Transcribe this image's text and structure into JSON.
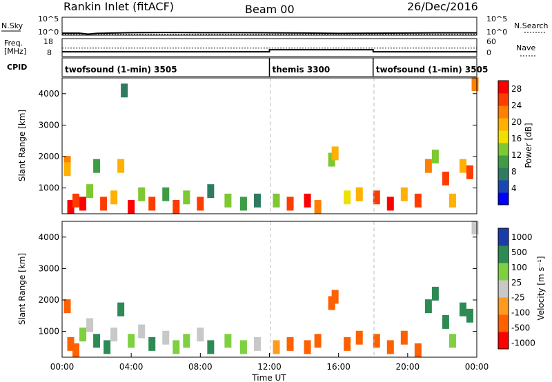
{
  "header": {
    "station": "Rankin Inlet (fitACF)",
    "beam": "Beam 00",
    "date": "26/Dec/2016"
  },
  "colors": {
    "power_scale": [
      "#0000ff",
      "#1a46b4",
      "#2f7a63",
      "#3e9c47",
      "#7ec832",
      "#f0e000",
      "#ffb000",
      "#ff8000",
      "#ff3c00",
      "#ff0000"
    ],
    "velocity_scale": [
      "#ff0000",
      "#ff6000",
      "#ff9a20",
      "#c8c8c8",
      "#7ed040",
      "#2e8a55",
      "#1a3caa"
    ],
    "ground_scatter": "#bebebe",
    "noise_line": "#000000"
  },
  "chart_data": [
    {
      "type": "line",
      "name": "noise-panel",
      "left_label": "N.Sky",
      "left_ticks": [
        "10^5",
        "10^0"
      ],
      "right_label": "N.Search",
      "right_ticks": [
        "10^5",
        "10^0"
      ],
      "x": [
        0,
        1,
        1.5,
        2,
        3,
        4,
        6,
        8,
        10,
        12,
        14,
        16,
        18,
        20,
        22,
        24
      ],
      "noise_sky_log10": [
        0.4,
        0.4,
        0.1,
        0.35,
        0.45,
        0.55,
        0.6,
        0.55,
        0.55,
        0.5,
        0.45,
        0.35,
        0.4,
        0.45,
        0.5,
        0.5
      ],
      "noise_search_log10": [
        0.1,
        0.1,
        0.1,
        0.1,
        0.1,
        0.1,
        0.1,
        0.1,
        0.1,
        0.1,
        0.1,
        0.1,
        0.1,
        0.1,
        0.1,
        0.1
      ]
    },
    {
      "type": "line",
      "name": "frequency-panel",
      "left_label": [
        "Freq.",
        "[MHz]"
      ],
      "left_ticks": [
        "18",
        "8"
      ],
      "right_label": "Nave",
      "right_ticks": [
        "60",
        "0"
      ],
      "x": [
        0,
        12,
        12,
        18,
        18,
        24
      ],
      "freq_mhz": [
        10.2,
        10.2,
        11.6,
        11.6,
        10.2,
        10.2
      ],
      "nave": [
        28,
        28,
        28,
        28,
        28,
        28
      ]
    },
    {
      "type": "table",
      "name": "cpid-panel",
      "label": "CPID",
      "segments": [
        {
          "start": 0,
          "end": 12,
          "label": "twofsound (1-min) 3505"
        },
        {
          "start": 12,
          "end": 18,
          "label": "themis 3300"
        },
        {
          "start": 18,
          "end": 24,
          "label": "twofsound (1-min) 3505"
        }
      ]
    },
    {
      "type": "heatmap",
      "name": "power-panel",
      "xlabel": "",
      "ylabel": "Slant Range [km]",
      "xlim": [
        0,
        24
      ],
      "ylim": [
        180,
        4500
      ],
      "yticks": [
        1000,
        2000,
        3000,
        4000
      ],
      "colorbar_label": "Power [dB]",
      "colorbar_ticks": [
        4,
        8,
        12,
        16,
        20,
        24,
        28
      ],
      "colorbar_range": [
        0,
        30
      ],
      "cells": [
        {
          "t": 0.3,
          "r": 1800,
          "v": 22
        },
        {
          "t": 0.3,
          "r": 1600,
          "v": 18
        },
        {
          "t": 0.5,
          "r": 400,
          "v": 28
        },
        {
          "t": 0.8,
          "r": 600,
          "v": 24
        },
        {
          "t": 1.2,
          "r": 500,
          "v": 27
        },
        {
          "t": 1.6,
          "r": 900,
          "v": 14
        },
        {
          "t": 2.0,
          "r": 1700,
          "v": 9
        },
        {
          "t": 2.4,
          "r": 500,
          "v": 26
        },
        {
          "t": 3.0,
          "r": 700,
          "v": 18
        },
        {
          "t": 3.4,
          "r": 1700,
          "v": 20
        },
        {
          "t": 3.6,
          "r": 4100,
          "v": 6
        },
        {
          "t": 4.0,
          "r": 400,
          "v": 28
        },
        {
          "t": 4.6,
          "r": 800,
          "v": 12
        },
        {
          "t": 5.2,
          "r": 500,
          "v": 26
        },
        {
          "t": 6.0,
          "r": 800,
          "v": 10
        },
        {
          "t": 6.6,
          "r": 400,
          "v": 25
        },
        {
          "t": 7.2,
          "r": 700,
          "v": 14
        },
        {
          "t": 8.0,
          "r": 500,
          "v": 24
        },
        {
          "t": 8.6,
          "r": 900,
          "v": 8
        },
        {
          "t": 9.6,
          "r": 600,
          "v": 12
        },
        {
          "t": 10.5,
          "r": 500,
          "v": 10
        },
        {
          "t": 11.3,
          "r": 600,
          "v": 8
        },
        {
          "t": 12.4,
          "r": 600,
          "v": 14
        },
        {
          "t": 13.2,
          "r": 500,
          "v": 26
        },
        {
          "t": 14.2,
          "r": 600,
          "v": 28
        },
        {
          "t": 14.8,
          "r": 400,
          "v": 22
        },
        {
          "t": 15.6,
          "r": 1900,
          "v": 12
        },
        {
          "t": 15.8,
          "r": 2100,
          "v": 20
        },
        {
          "t": 16.5,
          "r": 700,
          "v": 16
        },
        {
          "t": 17.2,
          "r": 800,
          "v": 20
        },
        {
          "t": 18.2,
          "r": 700,
          "v": 24
        },
        {
          "t": 19.0,
          "r": 500,
          "v": 28
        },
        {
          "t": 19.8,
          "r": 800,
          "v": 20
        },
        {
          "t": 20.6,
          "r": 600,
          "v": 26
        },
        {
          "t": 21.2,
          "r": 1700,
          "v": 22
        },
        {
          "t": 21.6,
          "r": 2000,
          "v": 14
        },
        {
          "t": 22.2,
          "r": 1300,
          "v": 26
        },
        {
          "t": 22.6,
          "r": 600,
          "v": 18
        },
        {
          "t": 23.2,
          "r": 1700,
          "v": 20
        },
        {
          "t": 23.6,
          "r": 1500,
          "v": 24
        },
        {
          "t": 23.9,
          "r": 4300,
          "v": 22
        }
      ]
    },
    {
      "type": "heatmap",
      "name": "velocity-panel",
      "xlabel": "Time UT",
      "ylabel": "Slant Range [km]",
      "xlim": [
        0,
        24
      ],
      "ylim": [
        180,
        4500
      ],
      "yticks": [
        1000,
        2000,
        3000,
        4000
      ],
      "xticks": [
        "00:00",
        "04:00",
        "08:00",
        "12:00",
        "16:00",
        "20:00",
        "00:00"
      ],
      "colorbar_label": "Velocity [m s⁻¹]",
      "colorbar_ticks": [
        1000,
        500,
        100,
        25,
        -25,
        -100,
        -500,
        -1000
      ],
      "cells": [
        {
          "t": 0.3,
          "r": 1800,
          "v": -300
        },
        {
          "t": 0.5,
          "r": 600,
          "v": -200
        },
        {
          "t": 0.8,
          "r": 400,
          "v": -150
        },
        {
          "t": 1.2,
          "r": 900,
          "v": 100
        },
        {
          "t": 1.6,
          "r": 1200,
          "v": 0
        },
        {
          "t": 2.0,
          "r": 700,
          "v": 300
        },
        {
          "t": 2.6,
          "r": 500,
          "v": 200
        },
        {
          "t": 3.0,
          "r": 900,
          "v": 0
        },
        {
          "t": 3.4,
          "r": 1700,
          "v": 200
        },
        {
          "t": 4.0,
          "r": 700,
          "v": 100
        },
        {
          "t": 4.6,
          "r": 1000,
          "v": 0
        },
        {
          "t": 5.2,
          "r": 600,
          "v": 150
        },
        {
          "t": 6.0,
          "r": 800,
          "v": 0
        },
        {
          "t": 6.6,
          "r": 500,
          "v": 100
        },
        {
          "t": 7.2,
          "r": 700,
          "v": 50
        },
        {
          "t": 8.0,
          "r": 900,
          "v": 0
        },
        {
          "t": 8.6,
          "r": 500,
          "v": 200
        },
        {
          "t": 9.6,
          "r": 700,
          "v": 100
        },
        {
          "t": 10.5,
          "r": 500,
          "v": 50
        },
        {
          "t": 11.3,
          "r": 600,
          "v": 0
        },
        {
          "t": 12.4,
          "r": 500,
          "v": -100
        },
        {
          "t": 13.2,
          "r": 600,
          "v": -250
        },
        {
          "t": 14.2,
          "r": 500,
          "v": -300
        },
        {
          "t": 14.8,
          "r": 700,
          "v": -200
        },
        {
          "t": 15.6,
          "r": 1900,
          "v": -400
        },
        {
          "t": 15.8,
          "r": 2100,
          "v": -300
        },
        {
          "t": 16.5,
          "r": 600,
          "v": -200
        },
        {
          "t": 17.2,
          "r": 800,
          "v": -150
        },
        {
          "t": 18.2,
          "r": 700,
          "v": -250
        },
        {
          "t": 19.0,
          "r": 500,
          "v": -300
        },
        {
          "t": 19.8,
          "r": 800,
          "v": -200
        },
        {
          "t": 20.6,
          "r": 400,
          "v": -350
        },
        {
          "t": 21.2,
          "r": 1800,
          "v": 300
        },
        {
          "t": 21.6,
          "r": 2200,
          "v": 500
        },
        {
          "t": 22.2,
          "r": 1300,
          "v": 200
        },
        {
          "t": 22.6,
          "r": 700,
          "v": 100
        },
        {
          "t": 23.2,
          "r": 1700,
          "v": 250
        },
        {
          "t": 23.6,
          "r": 1500,
          "v": 400
        },
        {
          "t": 23.9,
          "r": 4300,
          "v": 0
        }
      ]
    }
  ]
}
